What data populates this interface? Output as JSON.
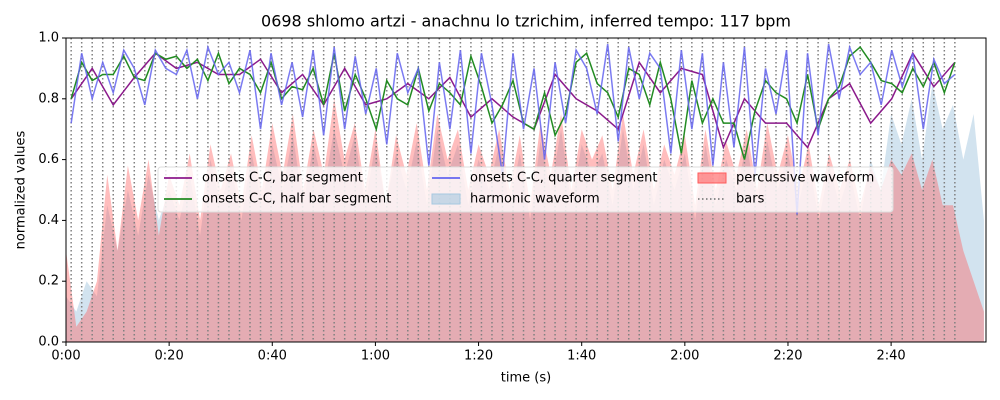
{
  "chart_data": {
    "type": "line",
    "title": "0698 shlomo artzi - anachnu lo tzrichim, inferred tempo: 117 bpm",
    "x_label": "time (s)",
    "y_label": "normalized values",
    "xlim": [
      0,
      178.4
    ],
    "ylim": [
      0,
      1
    ],
    "xticks": [
      {
        "value": 0,
        "label": "0:00"
      },
      {
        "value": 20,
        "label": "0:20"
      },
      {
        "value": 40,
        "label": "0:40"
      },
      {
        "value": 60,
        "label": "1:00"
      },
      {
        "value": 80,
        "label": "1:20"
      },
      {
        "value": 100,
        "label": "1:40"
      },
      {
        "value": 120,
        "label": "2:00"
      },
      {
        "value": 140,
        "label": "2:20"
      },
      {
        "value": 160,
        "label": "2:40"
      }
    ],
    "yticks": [
      {
        "value": 0,
        "label": "0.0"
      },
      {
        "value": 0.2,
        "label": "0.2"
      },
      {
        "value": 0.4,
        "label": "0.4"
      },
      {
        "value": 0.6,
        "label": "0.6"
      },
      {
        "value": 0.8,
        "label": "0.8"
      },
      {
        "value": 1,
        "label": "1.0"
      }
    ],
    "legend_loc": "center",
    "x": [
      1.0,
      3.04,
      5.08,
      7.12,
      9.16,
      11.2,
      13.24,
      15.28,
      17.32,
      19.36,
      21.4,
      23.44,
      25.48,
      27.52,
      29.56,
      31.6,
      33.64,
      35.68,
      37.72,
      39.76,
      41.8,
      43.84,
      45.88,
      47.92,
      49.96,
      52.0,
      54.04,
      56.08,
      58.12,
      60.16,
      62.2,
      64.24,
      66.28,
      68.32,
      70.36,
      72.4,
      74.44,
      76.48,
      78.52,
      80.56,
      82.6,
      84.64,
      86.68,
      88.72,
      90.76,
      92.8,
      94.84,
      96.88,
      98.92,
      100.96,
      103.0,
      105.04,
      107.08,
      109.12,
      111.16,
      113.2,
      115.24,
      117.28,
      119.32,
      121.36,
      123.4,
      125.44,
      127.48,
      129.52,
      131.56,
      133.6,
      135.64,
      137.68,
      139.72,
      141.76,
      143.8,
      145.84,
      147.88,
      149.92,
      151.96,
      154.0,
      156.04,
      158.08,
      160.12,
      162.16,
      164.2,
      166.24,
      168.28,
      170.32,
      172.36
    ],
    "series": [
      {
        "name": "onsets C-C, bar segment",
        "kind": "line",
        "color": "#8b1a8b",
        "x": [
          1.0,
          5.08,
          9.16,
          13.24,
          17.32,
          21.4,
          25.48,
          29.56,
          33.64,
          37.72,
          41.8,
          45.88,
          49.96,
          54.04,
          58.12,
          62.2,
          66.28,
          70.36,
          74.44,
          78.52,
          82.6,
          86.68,
          90.76,
          94.84,
          98.92,
          103.0,
          107.08,
          111.16,
          115.24,
          119.32,
          123.4,
          127.48,
          131.56,
          135.64,
          139.72,
          143.8,
          147.88,
          151.96,
          156.04,
          160.12,
          164.2,
          168.28,
          172.36
        ],
        "values": [
          0.8,
          0.9,
          0.78,
          0.87,
          0.95,
          0.9,
          0.92,
          0.88,
          0.88,
          0.93,
          0.82,
          0.88,
          0.78,
          0.9,
          0.78,
          0.8,
          0.85,
          0.8,
          0.87,
          0.74,
          0.8,
          0.74,
          0.7,
          0.88,
          0.8,
          0.76,
          0.7,
          0.92,
          0.82,
          0.9,
          0.88,
          0.64,
          0.8,
          0.72,
          0.72,
          0.64,
          0.8,
          0.85,
          0.72,
          0.8,
          0.95,
          0.84,
          0.92
        ]
      },
      {
        "name": "onsets C-C, half bar segment",
        "kind": "line",
        "color": "#228b22",
        "values": [
          0.8,
          0.92,
          0.86,
          0.88,
          0.88,
          0.94,
          0.87,
          0.86,
          0.95,
          0.93,
          0.94,
          0.9,
          0.93,
          0.86,
          0.95,
          0.85,
          0.9,
          0.88,
          0.82,
          0.92,
          0.8,
          0.84,
          0.83,
          0.9,
          0.78,
          0.95,
          0.76,
          0.88,
          0.8,
          0.7,
          0.86,
          0.8,
          0.78,
          0.9,
          0.76,
          0.85,
          0.82,
          0.78,
          0.94,
          0.84,
          0.72,
          0.78,
          0.86,
          0.72,
          0.7,
          0.82,
          0.68,
          0.75,
          0.92,
          0.95,
          0.85,
          0.82,
          0.74,
          0.9,
          0.88,
          0.78,
          0.92,
          0.8,
          0.62,
          0.86,
          0.72,
          0.8,
          0.72,
          0.72,
          0.6,
          0.76,
          0.86,
          0.82,
          0.8,
          0.72,
          0.88,
          0.7,
          0.8,
          0.84,
          0.94,
          0.97,
          0.92,
          0.86,
          0.85,
          0.82,
          0.9,
          0.84,
          0.92,
          0.82,
          0.92
        ]
      },
      {
        "name": "onsets C-C, quarter segment",
        "kind": "line",
        "color": "#6464f0",
        "values": [
          0.72,
          0.95,
          0.8,
          0.92,
          0.82,
          0.96,
          0.9,
          0.78,
          0.96,
          0.9,
          0.88,
          0.96,
          0.8,
          0.97,
          0.88,
          0.92,
          0.82,
          0.96,
          0.7,
          0.95,
          0.78,
          0.92,
          0.74,
          0.96,
          0.68,
          0.97,
          0.7,
          0.94,
          0.75,
          0.9,
          0.65,
          0.95,
          0.82,
          0.9,
          0.58,
          0.92,
          0.7,
          0.96,
          0.62,
          0.95,
          0.78,
          0.55,
          0.95,
          0.7,
          0.9,
          0.6,
          0.92,
          0.72,
          0.96,
          0.9,
          0.75,
          0.98,
          0.66,
          0.97,
          0.8,
          0.95,
          0.9,
          0.62,
          0.96,
          0.7,
          0.95,
          0.58,
          0.92,
          0.64,
          0.97,
          0.55,
          0.9,
          0.75,
          0.96,
          0.42,
          0.95,
          0.68,
          0.98,
          0.8,
          0.97,
          0.88,
          0.92,
          0.78,
          0.96,
          0.84,
          0.95,
          0.7,
          0.93,
          0.85,
          0.88
        ]
      },
      {
        "name": "harmonic waveform",
        "kind": "area",
        "color": "#a6c8e0",
        "x": [
          0,
          2,
          4,
          6,
          8,
          10,
          12,
          14,
          16,
          18,
          20,
          22,
          24,
          26,
          28,
          30,
          32,
          34,
          36,
          38,
          40,
          42,
          44,
          46,
          48,
          50,
          52,
          54,
          56,
          58,
          60,
          62,
          64,
          66,
          68,
          70,
          72,
          74,
          76,
          78,
          80,
          82,
          84,
          86,
          88,
          90,
          92,
          94,
          96,
          98,
          100,
          102,
          104,
          106,
          108,
          110,
          112,
          114,
          116,
          118,
          120,
          122,
          124,
          126,
          128,
          130,
          132,
          134,
          136,
          138,
          140,
          142,
          144,
          146,
          148,
          150,
          152,
          154,
          156,
          158,
          160,
          162,
          164,
          166,
          168,
          170,
          172,
          174,
          176,
          178
        ],
        "values": [
          0.15,
          0.1,
          0.2,
          0.15,
          0.45,
          0.3,
          0.5,
          0.35,
          0.55,
          0.4,
          0.5,
          0.4,
          0.55,
          0.35,
          0.6,
          0.45,
          0.58,
          0.4,
          0.62,
          0.45,
          0.65,
          0.5,
          0.68,
          0.45,
          0.65,
          0.5,
          0.7,
          0.55,
          0.68,
          0.45,
          0.65,
          0.45,
          0.62,
          0.5,
          0.66,
          0.45,
          0.7,
          0.55,
          0.65,
          0.45,
          0.6,
          0.5,
          0.65,
          0.45,
          0.62,
          0.4,
          0.66,
          0.5,
          0.7,
          0.45,
          0.65,
          0.55,
          0.62,
          0.45,
          0.7,
          0.5,
          0.65,
          0.45,
          0.6,
          0.5,
          0.62,
          0.4,
          0.65,
          0.45,
          0.6,
          0.5,
          0.65,
          0.45,
          0.66,
          0.5,
          0.62,
          0.45,
          0.6,
          0.4,
          0.58,
          0.45,
          0.56,
          0.4,
          0.6,
          0.5,
          0.75,
          0.65,
          0.8,
          0.6,
          0.85,
          0.7,
          0.78,
          0.6,
          0.75,
          0.4
        ]
      },
      {
        "name": "percussive waveform",
        "kind": "area",
        "color": "#ff5a5a",
        "x": [
          0,
          2,
          4,
          6,
          8,
          10,
          12,
          14,
          16,
          18,
          20,
          22,
          24,
          26,
          28,
          30,
          32,
          34,
          36,
          38,
          40,
          42,
          44,
          46,
          48,
          50,
          52,
          54,
          56,
          58,
          60,
          62,
          64,
          66,
          68,
          70,
          72,
          74,
          76,
          78,
          80,
          82,
          84,
          86,
          88,
          90,
          92,
          94,
          96,
          98,
          100,
          102,
          104,
          106,
          108,
          110,
          112,
          114,
          116,
          118,
          120,
          122,
          124,
          126,
          128,
          130,
          132,
          134,
          136,
          138,
          140,
          142,
          144,
          146,
          148,
          150,
          152,
          154,
          156,
          158,
          160,
          162,
          164,
          166,
          168,
          170,
          172,
          174,
          176,
          178
        ],
        "values": [
          0.3,
          0.05,
          0.1,
          0.2,
          0.55,
          0.3,
          0.58,
          0.4,
          0.6,
          0.35,
          0.55,
          0.45,
          0.62,
          0.4,
          0.65,
          0.5,
          0.62,
          0.45,
          0.68,
          0.5,
          0.72,
          0.55,
          0.75,
          0.5,
          0.7,
          0.55,
          0.8,
          0.6,
          0.72,
          0.5,
          0.7,
          0.45,
          0.68,
          0.55,
          0.72,
          0.5,
          0.75,
          0.6,
          0.7,
          0.5,
          0.65,
          0.55,
          0.7,
          0.5,
          0.68,
          0.45,
          0.72,
          0.55,
          0.75,
          0.5,
          0.7,
          0.6,
          0.68,
          0.5,
          0.75,
          0.55,
          0.7,
          0.5,
          0.65,
          0.55,
          0.68,
          0.45,
          0.7,
          0.5,
          0.66,
          0.55,
          0.7,
          0.5,
          0.72,
          0.55,
          0.68,
          0.5,
          0.65,
          0.45,
          0.62,
          0.5,
          0.6,
          0.45,
          0.58,
          0.5,
          0.6,
          0.55,
          0.62,
          0.5,
          0.6,
          0.45,
          0.45,
          0.3,
          0.2,
          0.1
        ]
      }
    ],
    "bars": {
      "name": "bars",
      "color": "#808080",
      "x": [
        1.0,
        3.04,
        5.08,
        7.12,
        9.16,
        11.2,
        13.24,
        15.28,
        17.32,
        19.36,
        21.4,
        23.44,
        25.48,
        27.52,
        29.56,
        31.6,
        33.64,
        35.68,
        37.72,
        39.76,
        41.8,
        43.84,
        45.88,
        47.92,
        49.96,
        52.0,
        54.04,
        56.08,
        58.12,
        60.16,
        62.2,
        64.24,
        66.28,
        68.32,
        70.36,
        72.4,
        74.44,
        76.48,
        78.52,
        80.56,
        82.6,
        84.64,
        86.68,
        88.72,
        90.76,
        92.8,
        94.84,
        96.88,
        98.92,
        100.96,
        103.0,
        105.04,
        107.08,
        109.12,
        111.16,
        113.2,
        115.24,
        117.28,
        119.32,
        121.36,
        123.4,
        125.44,
        127.48,
        129.52,
        131.56,
        133.6,
        135.64,
        137.68,
        139.72,
        141.76,
        143.8,
        145.84,
        147.88,
        149.92,
        151.96,
        154.0,
        156.04,
        158.08,
        160.12,
        162.16,
        164.2,
        166.24,
        168.28,
        170.32,
        172.36
      ]
    }
  }
}
